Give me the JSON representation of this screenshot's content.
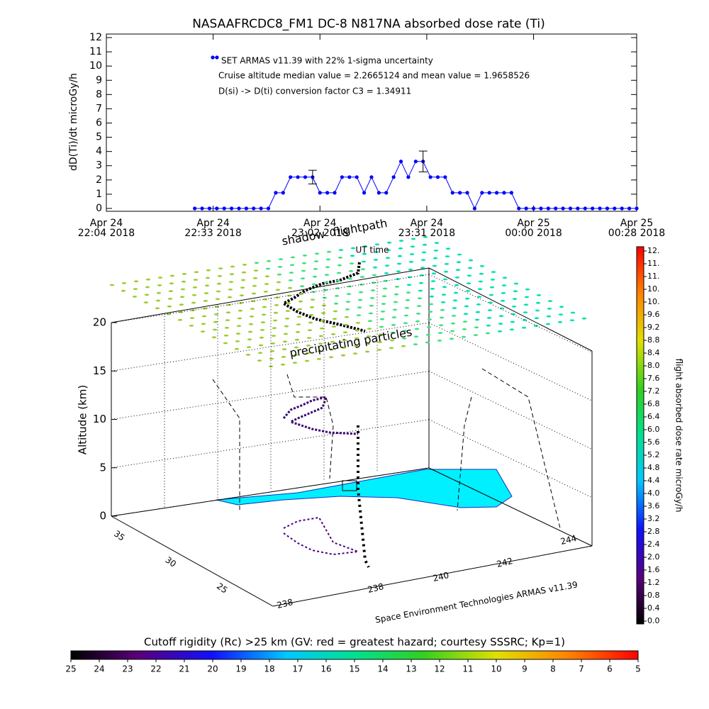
{
  "chart_data": {
    "type": "line",
    "title": "NASAAFRCDC8_FM1 DC-8    N817NA absorbed dose rate (Ti)",
    "ylabel": "dD(Ti)/dt microGy/h",
    "x": [
      "2018-04-24 22:28",
      "2018-04-24 22:30",
      "2018-04-24 22:32",
      "2018-04-24 22:34",
      "2018-04-24 22:36",
      "2018-04-24 22:38",
      "2018-04-24 22:40",
      "2018-04-24 22:42",
      "2018-04-24 22:44",
      "2018-04-24 22:46",
      "2018-04-24 22:48",
      "2018-04-24 22:50",
      "2018-04-24 22:52",
      "2018-04-24 22:54",
      "2018-04-24 22:56",
      "2018-04-24 22:58",
      "2018-04-24 23:00",
      "2018-04-24 23:02",
      "2018-04-24 23:04",
      "2018-04-24 23:06",
      "2018-04-24 23:08",
      "2018-04-24 23:10",
      "2018-04-24 23:12",
      "2018-04-24 23:14",
      "2018-04-24 23:16",
      "2018-04-24 23:18",
      "2018-04-24 23:20",
      "2018-04-24 23:22",
      "2018-04-24 23:24",
      "2018-04-24 23:26",
      "2018-04-24 23:28",
      "2018-04-24 23:30",
      "2018-04-24 23:32",
      "2018-04-24 23:34",
      "2018-04-24 23:36",
      "2018-04-24 23:38",
      "2018-04-24 23:40",
      "2018-04-24 23:42",
      "2018-04-24 23:44",
      "2018-04-24 23:46",
      "2018-04-24 23:48",
      "2018-04-24 23:50",
      "2018-04-24 23:52",
      "2018-04-24 23:54",
      "2018-04-24 23:56",
      "2018-04-24 23:58",
      "2018-04-25 00:00",
      "2018-04-25 00:02",
      "2018-04-25 00:04",
      "2018-04-25 00:06",
      "2018-04-25 00:08",
      "2018-04-25 00:10",
      "2018-04-25 00:12",
      "2018-04-25 00:14",
      "2018-04-25 00:16",
      "2018-04-25 00:18",
      "2018-04-25 00:20",
      "2018-04-25 00:22",
      "2018-04-25 00:24",
      "2018-04-25 00:26",
      "2018-04-25 00:28"
    ],
    "series": [
      {
        "name": "SET ARMAS v11.39 with 22% 1-sigma uncertainty",
        "color": "#0000ff",
        "values": [
          0,
          0,
          0,
          0,
          0,
          0,
          0,
          0,
          0,
          0,
          0,
          1.1,
          1.1,
          2.2,
          2.2,
          2.2,
          2.2,
          1.1,
          1.1,
          1.1,
          2.2,
          2.2,
          2.2,
          1.1,
          2.2,
          1.1,
          1.1,
          2.2,
          3.3,
          2.2,
          3.3,
          3.3,
          2.2,
          2.2,
          2.2,
          1.1,
          1.1,
          1.1,
          0,
          1.1,
          1.1,
          1.1,
          1.1,
          1.1,
          0,
          0,
          0,
          0,
          0,
          0,
          0,
          0,
          0,
          0,
          0,
          0,
          0,
          0,
          0,
          0,
          0
        ]
      }
    ],
    "error_bars": {
      "x": [
        "2018-04-24 23:00",
        "2018-04-24 23:30"
      ],
      "values": [
        2.2,
        3.3
      ],
      "errors": [
        0.48,
        0.73
      ]
    },
    "annotations": [
      "Cruise altitude median value = 2.2665124 and mean value = 1.9658526",
      "D(si) -> D(ti) conversion factor C3 = 1.34911"
    ],
    "xlim": [
      "2018-04-24 22:04",
      "2018-04-25 00:28"
    ],
    "xticks": [
      {
        "value": "2018-04-24 22:04",
        "label": [
          "Apr 24",
          "22:04 2018"
        ]
      },
      {
        "value": "2018-04-24 22:33",
        "label": [
          "Apr 24",
          "22:33 2018"
        ]
      },
      {
        "value": "2018-04-24 23:02",
        "label": [
          "Apr 24",
          "23:02 2018"
        ]
      },
      {
        "value": "2018-04-24 23:31",
        "label": [
          "Apr 24",
          "23:31 2018"
        ]
      },
      {
        "value": "2018-04-25 00:00",
        "label": [
          "Apr 25",
          "00:00 2018"
        ]
      },
      {
        "value": "2018-04-25 00:28",
        "label": [
          "Apr 25",
          "00:28 2018"
        ]
      }
    ],
    "ylim": [
      -0.2,
      12.25
    ],
    "yticks": [
      0,
      1,
      2,
      3,
      4,
      5,
      6,
      7,
      8,
      9,
      10,
      11,
      12
    ]
  },
  "plot3d": {
    "labels": [
      "shadow",
      "flightpath",
      "UT time",
      "precipitating particles"
    ],
    "zlabel": "Altitude (km)",
    "zlim": [
      0,
      20
    ],
    "zticks": [
      0,
      5,
      10,
      15,
      20
    ],
    "lat_ticks": [
      35,
      30,
      25
    ],
    "lon_ticks": [
      238,
      238,
      240,
      242,
      244
    ],
    "credit": "Space Environment Technologies ARMAS v11.39"
  },
  "dose_colorbar": {
    "title": "flight absorbed dose rate microGy/h",
    "ticks": [
      {
        "value": 0.0,
        "label": "0.0"
      },
      0.4,
      0.8,
      1.2,
      1.6,
      {
        "value": 2.0,
        "label": "2.0"
      },
      2.4,
      2.8,
      3.2,
      3.6,
      {
        "value": 4.0,
        "label": "4.0"
      },
      4.4,
      4.8,
      5.2,
      5.6,
      {
        "value": 6.0,
        "label": "6.0"
      },
      6.4,
      6.8,
      7.2,
      7.6,
      {
        "value": 8.0,
        "label": "8.0"
      },
      8.4,
      8.8,
      9.2,
      9.6,
      {
        "value": 10.0,
        "label": "10."
      },
      {
        "value": 10.5,
        "label": "10."
      },
      {
        "value": 11.0,
        "label": "11."
      },
      {
        "value": 11.5,
        "label": "11."
      },
      {
        "value": 12.0,
        "label": "12."
      }
    ]
  },
  "rigidity_colorbar": {
    "title": "Cutoff rigidity (Rc) >25 km (GV: red = greatest hazard; courtesy SSSRC; Kp=1)",
    "lim": [
      25,
      5
    ],
    "ticks": [
      25,
      24,
      23,
      22,
      21,
      20,
      19,
      18,
      17,
      16,
      15,
      14,
      13,
      12,
      11,
      10,
      9,
      8,
      7,
      6,
      5
    ]
  }
}
